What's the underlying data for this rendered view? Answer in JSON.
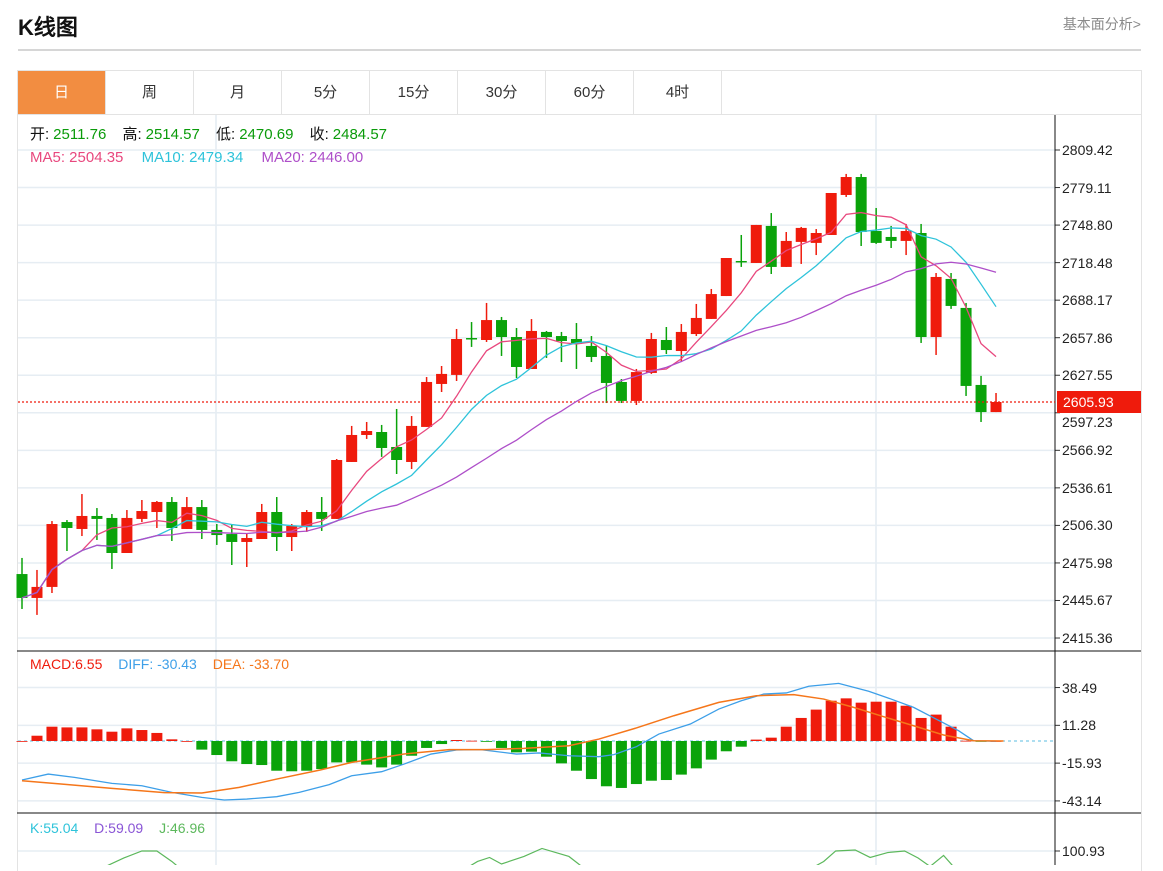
{
  "header": {
    "title": "K线图",
    "link": "基本面分析>"
  },
  "tabs": [
    {
      "label": "日",
      "active": true
    },
    {
      "label": "周"
    },
    {
      "label": "月"
    },
    {
      "label": "5分"
    },
    {
      "label": "15分"
    },
    {
      "label": "30分"
    },
    {
      "label": "60分"
    },
    {
      "label": "4时"
    }
  ],
  "ohlc_legend": {
    "open_label": "开:",
    "open": "2511.76",
    "high_label": "高:",
    "high": "2514.57",
    "low_label": "低:",
    "low": "2470.69",
    "close_label": "收:",
    "close": "2484.57"
  },
  "ma_legend": {
    "ma5": "MA5: 2504.35",
    "ma10": "MA10: 2479.34",
    "ma20": "MA20: 2446.00"
  },
  "macd_legend": {
    "macd": "MACD:6.55",
    "diff": "DIFF: -30.43",
    "dea": "DEA: -33.70"
  },
  "kdj_legend": {
    "k": "K:55.04",
    "d": "D:59.09",
    "j": "J:46.96"
  },
  "current_price": "2605.93",
  "colors": {
    "up": "#ef1b0c",
    "down": "#0aa30a",
    "ma5": "#e8487e",
    "ma10": "#2ec3da",
    "ma20": "#ae4fc9",
    "diff": "#3d9fe8",
    "dea": "#f5761a",
    "k": "#2ec3da",
    "d": "#8a55d6",
    "j": "#5cb85c",
    "accent": "#f28d41"
  },
  "chart_data": {
    "type": "candlestick",
    "price_axis": {
      "ticks": [
        "2809.42",
        "2779.11",
        "2748.80",
        "2718.48",
        "2688.17",
        "2657.86",
        "2627.55",
        "2597.23",
        "2566.92",
        "2536.61",
        "2506.30",
        "2475.98",
        "2445.67",
        "2415.36"
      ],
      "range": [
        2415.36,
        2809.42
      ]
    },
    "candles_ohlc": [
      [
        2467.0,
        2480.0,
        2438.8,
        2447.7
      ],
      [
        2447.7,
        2470.3,
        2434.0,
        2456.6
      ],
      [
        2456.6,
        2509.8,
        2451.7,
        2507.4
      ],
      [
        2509.0,
        2510.6,
        2485.6,
        2504.2
      ],
      [
        2503.4,
        2531.6,
        2497.7,
        2513.9
      ],
      [
        2513.9,
        2520.3,
        2494.5,
        2511.5
      ],
      [
        2512.3,
        2515.5,
        2471.1,
        2484.0
      ],
      [
        2484.0,
        2518.7,
        2484.0,
        2512.3
      ],
      [
        2511.5,
        2526.8,
        2509.0,
        2517.9
      ],
      [
        2517.1,
        2526.0,
        2504.2,
        2525.2
      ],
      [
        2525.2,
        2529.2,
        2493.7,
        2504.2
      ],
      [
        2503.4,
        2529.2,
        2503.4,
        2521.1
      ],
      [
        2521.1,
        2526.8,
        2495.3,
        2502.6
      ],
      [
        2502.6,
        2507.4,
        2490.5,
        2498.5
      ],
      [
        2499.3,
        2506.6,
        2474.3,
        2492.9
      ],
      [
        2492.9,
        2500.1,
        2472.7,
        2496.1
      ],
      [
        2495.3,
        2523.6,
        2495.3,
        2517.1
      ],
      [
        2517.1,
        2529.2,
        2485.6,
        2496.9
      ],
      [
        2496.9,
        2507.4,
        2485.6,
        2505.8
      ],
      [
        2505.8,
        2518.7,
        2501.0,
        2517.1
      ],
      [
        2517.1,
        2529.2,
        2501.8,
        2511.5
      ],
      [
        2511.5,
        2559.9,
        2511.5,
        2559.1
      ],
      [
        2557.5,
        2586.6,
        2557.5,
        2579.3
      ],
      [
        2579.3,
        2589.8,
        2576.1,
        2582.5
      ],
      [
        2581.7,
        2587.4,
        2561.6,
        2568.8
      ],
      [
        2569.6,
        2600.3,
        2547.8,
        2559.1
      ],
      [
        2557.5,
        2594.6,
        2551.8,
        2586.6
      ],
      [
        2585.8,
        2626.1,
        2585.8,
        2622.1
      ],
      [
        2620.5,
        2635.0,
        2614.0,
        2628.6
      ],
      [
        2627.8,
        2664.9,
        2622.9,
        2656.8
      ],
      [
        2657.6,
        2670.5,
        2650.4,
        2656.8
      ],
      [
        2656.0,
        2685.9,
        2654.4,
        2672.1
      ],
      [
        2672.1,
        2674.6,
        2643.1,
        2658.4
      ],
      [
        2658.4,
        2665.7,
        2625.3,
        2634.2
      ],
      [
        2632.6,
        2672.9,
        2632.6,
        2663.3
      ],
      [
        2662.5,
        2663.3,
        2641.5,
        2658.4
      ],
      [
        2659.2,
        2662.5,
        2638.2,
        2655.2
      ],
      [
        2656.8,
        2669.7,
        2632.6,
        2652.8
      ],
      [
        2651.2,
        2659.2,
        2638.2,
        2642.3
      ],
      [
        2643.1,
        2651.9,
        2605.1,
        2621.3
      ],
      [
        2622.1,
        2624.5,
        2605.1,
        2606.8
      ],
      [
        2606.8,
        2632.6,
        2603.5,
        2630.1
      ],
      [
        2629.4,
        2661.7,
        2628.6,
        2656.8
      ],
      [
        2656.0,
        2666.5,
        2644.7,
        2647.9
      ],
      [
        2647.1,
        2668.9,
        2638.2,
        2662.5
      ],
      [
        2660.8,
        2685.1,
        2659.2,
        2673.8
      ],
      [
        2673.0,
        2697.2,
        2673.0,
        2693.1
      ],
      [
        2691.5,
        2722.2,
        2691.5,
        2722.2
      ],
      [
        2719.8,
        2740.8,
        2715.0,
        2719.0
      ],
      [
        2718.2,
        2748.9,
        2718.2,
        2748.9
      ],
      [
        2748.1,
        2758.5,
        2709.3,
        2715.0
      ],
      [
        2715.0,
        2743.2,
        2715.0,
        2736.0
      ],
      [
        2735.2,
        2747.3,
        2717.4,
        2746.5
      ],
      [
        2734.4,
        2745.6,
        2724.6,
        2742.4
      ],
      [
        2740.8,
        2774.7,
        2740.8,
        2774.7
      ],
      [
        2773.1,
        2790.1,
        2771.5,
        2787.6
      ],
      [
        2787.6,
        2790.1,
        2731.9,
        2743.2
      ],
      [
        2744.0,
        2762.6,
        2733.6,
        2734.4
      ],
      [
        2739.2,
        2748.1,
        2730.3,
        2736.0
      ],
      [
        2736.0,
        2749.7,
        2724.6,
        2744.0
      ],
      [
        2742.4,
        2749.7,
        2653.6,
        2658.4
      ],
      [
        2658.4,
        2710.1,
        2643.9,
        2706.9
      ],
      [
        2705.3,
        2710.1,
        2681.1,
        2683.5
      ],
      [
        2681.9,
        2685.9,
        2610.8,
        2618.9
      ],
      [
        2619.7,
        2627.0,
        2589.8,
        2597.8
      ],
      [
        2597.8,
        2613.2,
        2597.8,
        2605.93
      ]
    ],
    "ma_periods": [
      5,
      10,
      20
    ],
    "macd": {
      "axis_ticks": [
        "38.49",
        "11.28",
        "-15.93",
        "-43.14"
      ],
      "histogram": [
        0,
        3.8,
        10.3,
        9.8,
        9.8,
        8.4,
        6.7,
        9.1,
        7.9,
        5.8,
        1.2,
        0,
        -6.2,
        -10.1,
        -14.6,
        -16.6,
        -17.3,
        -21.4,
        -21.8,
        -21.4,
        -20.2,
        -15.4,
        -15.4,
        -17.0,
        -19.0,
        -17.0,
        -10.6,
        -5.0,
        -2.2,
        0.7,
        0.2,
        -0.3,
        -5.0,
        -8.2,
        -7.7,
        -11.3,
        -16.1,
        -21.4,
        -27.4,
        -32.6,
        -33.8,
        -31.0,
        -28.6,
        -28.1,
        -24.2,
        -19.7,
        -13.4,
        -7.4,
        -4.1,
        1.0,
        2.4,
        10.3,
        16.6,
        22.6,
        29.0,
        30.7,
        27.6,
        28.3,
        28.3,
        25.4,
        16.6,
        19.0,
        10.3,
        0.2,
        -0.2,
        0
      ],
      "diff_points": [
        [
          0,
          -28.1
        ],
        [
          1.75,
          -23.8
        ],
        [
          3.5,
          -26.2
        ],
        [
          6,
          -30.5
        ],
        [
          8,
          -32.2
        ],
        [
          10,
          -37.0
        ],
        [
          12,
          -40.6
        ],
        [
          13.5,
          -42.5
        ],
        [
          15,
          -41.8
        ],
        [
          17,
          -40.1
        ],
        [
          18.5,
          -37.0
        ],
        [
          20.5,
          -31.4
        ],
        [
          22,
          -25.0
        ],
        [
          24,
          -22.1
        ],
        [
          25.5,
          -16.6
        ],
        [
          27.3,
          -9.4
        ],
        [
          29,
          -6.5
        ],
        [
          30.6,
          -6.2
        ],
        [
          33,
          -9.4
        ],
        [
          34.5,
          -8.6
        ],
        [
          36.5,
          -10.6
        ],
        [
          38.5,
          -11.3
        ],
        [
          39.5,
          -9.8
        ],
        [
          41,
          -4.1
        ],
        [
          42.5,
          5.0
        ],
        [
          44.6,
          12.2
        ],
        [
          46.5,
          23.0
        ],
        [
          48,
          29.0
        ],
        [
          49.5,
          33.8
        ],
        [
          51,
          34.6
        ],
        [
          52.5,
          39.4
        ],
        [
          54.5,
          41.5
        ],
        [
          56.5,
          35.8
        ],
        [
          58,
          30.2
        ],
        [
          59.5,
          24.2
        ],
        [
          61,
          15.8
        ],
        [
          62.5,
          7.4
        ],
        [
          63.5,
          0.2
        ],
        [
          65,
          -0.2
        ]
      ],
      "dea_points": [
        [
          0,
          -28.6
        ],
        [
          2.6,
          -31.0
        ],
        [
          6,
          -34.1
        ],
        [
          9.5,
          -37.2
        ],
        [
          12,
          -37.4
        ],
        [
          14.5,
          -33.4
        ],
        [
          17,
          -27.4
        ],
        [
          19.9,
          -20.9
        ],
        [
          22,
          -15.4
        ],
        [
          25.5,
          -9.4
        ],
        [
          28.5,
          -6.2
        ],
        [
          31,
          -6.2
        ],
        [
          33.5,
          -5.3
        ],
        [
          36.5,
          -3.4
        ],
        [
          38.5,
          1.4
        ],
        [
          41,
          9.4
        ],
        [
          43.5,
          18.2
        ],
        [
          46.5,
          27.8
        ],
        [
          49,
          32.6
        ],
        [
          51.5,
          33.4
        ],
        [
          53.5,
          30.2
        ],
        [
          55.5,
          24.2
        ],
        [
          57.5,
          17.5
        ],
        [
          59.5,
          11.0
        ],
        [
          61.5,
          4.3
        ],
        [
          63.5,
          0.2
        ],
        [
          65.5,
          0
        ]
      ]
    },
    "kdj": {
      "axis_ticks": [
        "100.93"
      ],
      "j_points": [
        [
          4,
          55
        ],
        [
          5,
          62
        ],
        [
          6.8,
          87
        ],
        [
          8,
          101
        ],
        [
          9,
          101
        ],
        [
          10,
          80
        ],
        [
          11,
          55
        ],
        [
          29,
          55
        ],
        [
          30.4,
          80
        ],
        [
          31.2,
          88
        ],
        [
          32,
          75
        ],
        [
          33.5,
          90
        ],
        [
          34.7,
          106
        ],
        [
          36.5,
          90
        ],
        [
          38,
          55
        ],
        [
          52,
          55
        ],
        [
          53.5,
          80
        ],
        [
          54.3,
          101
        ],
        [
          55.6,
          103
        ],
        [
          56.6,
          88
        ],
        [
          57.8,
          98
        ],
        [
          58.9,
          101
        ],
        [
          59.8,
          87
        ],
        [
          60.6,
          70
        ],
        [
          61.5,
          92
        ],
        [
          62.3,
          65
        ],
        [
          63,
          50
        ]
      ]
    }
  }
}
